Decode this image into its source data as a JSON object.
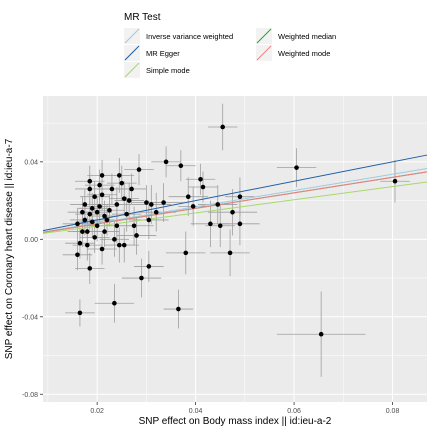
{
  "chart_data": {
    "type": "scatter",
    "xlabel": "SNP effect on Body mass index || id:ieu-a-2",
    "ylabel": "SNP effect on Coronary heart disease || id:ieu-a-7",
    "xlim": [
      0.009,
      0.087
    ],
    "ylim": [
      -0.084,
      0.074
    ],
    "x_ticks": [
      0.02,
      0.04,
      0.06,
      0.08
    ],
    "x_tick_labels": [
      "0.02",
      "0.04",
      "0.06",
      "0.08"
    ],
    "y_ticks": [
      -0.08,
      -0.04,
      0.0,
      0.04
    ],
    "y_tick_labels": [
      "-0.08",
      "-0.04",
      "0.00",
      "0.04"
    ],
    "grid": true,
    "legend": {
      "title": "MR Test",
      "placement": "top",
      "entries": [
        {
          "label": "Inverse variance weighted",
          "color": "#9ecae1"
        },
        {
          "label": "Weighted median",
          "color": "#2ca02c"
        },
        {
          "label": "MR Egger",
          "color": "#1f5fa8"
        },
        {
          "label": "Weighted mode",
          "color": "#f08080"
        },
        {
          "label": "Simple mode",
          "color": "#a6d96a"
        }
      ]
    },
    "lines": [
      {
        "name": "Inverse variance weighted",
        "slope": 0.42,
        "color": "#9ecae1"
      },
      {
        "name": "MR Egger",
        "slope": 0.5,
        "color": "#1f5fa8"
      },
      {
        "name": "Weighted median",
        "slope": 0.4,
        "color": "#2ca02c"
      },
      {
        "name": "Weighted mode",
        "slope": 0.4,
        "color": "#f08080"
      },
      {
        "name": "Simple mode",
        "slope": 0.34,
        "color": "#a6d96a"
      }
    ],
    "points": [
      {
        "x": 0.0455,
        "y": 0.058,
        "xerr": 0.003,
        "yerr": 0.012
      },
      {
        "x": 0.0605,
        "y": 0.037,
        "xerr": 0.004,
        "yerr": 0.01
      },
      {
        "x": 0.0805,
        "y": 0.03,
        "xerr": 0.003,
        "yerr": 0.011
      },
      {
        "x": 0.0655,
        "y": -0.049,
        "xerr": 0.009,
        "yerr": 0.022
      },
      {
        "x": 0.0365,
        "y": -0.036,
        "xerr": 0.003,
        "yerr": 0.01
      },
      {
        "x": 0.0165,
        "y": -0.038,
        "xerr": 0.003,
        "yerr": 0.007
      },
      {
        "x": 0.0235,
        "y": -0.033,
        "xerr": 0.004,
        "yerr": 0.01
      },
      {
        "x": 0.029,
        "y": -0.02,
        "xerr": 0.004,
        "yerr": 0.01
      },
      {
        "x": 0.0305,
        "y": -0.014,
        "xerr": 0.003,
        "yerr": 0.008
      },
      {
        "x": 0.038,
        "y": -0.007,
        "xerr": 0.004,
        "yerr": 0.011
      },
      {
        "x": 0.047,
        "y": -0.007,
        "xerr": 0.004,
        "yerr": 0.012
      },
      {
        "x": 0.0385,
        "y": 0.022,
        "xerr": 0.004,
        "yerr": 0.01
      },
      {
        "x": 0.0395,
        "y": 0.017,
        "xerr": 0.003,
        "yerr": 0.01
      },
      {
        "x": 0.043,
        "y": 0.008,
        "xerr": 0.004,
        "yerr": 0.012
      },
      {
        "x": 0.0445,
        "y": 0.018,
        "xerr": 0.004,
        "yerr": 0.01
      },
      {
        "x": 0.045,
        "y": 0.007,
        "xerr": 0.003,
        "yerr": 0.011
      },
      {
        "x": 0.0475,
        "y": 0.014,
        "xerr": 0.005,
        "yerr": 0.012
      },
      {
        "x": 0.049,
        "y": 0.008,
        "xerr": 0.004,
        "yerr": 0.011
      },
      {
        "x": 0.049,
        "y": 0.022,
        "xerr": 0.003,
        "yerr": 0.01
      },
      {
        "x": 0.041,
        "y": 0.031,
        "xerr": 0.003,
        "yerr": 0.008
      },
      {
        "x": 0.0415,
        "y": 0.027,
        "xerr": 0.003,
        "yerr": 0.008
      },
      {
        "x": 0.037,
        "y": 0.038,
        "xerr": 0.003,
        "yerr": 0.008
      },
      {
        "x": 0.034,
        "y": 0.04,
        "xerr": 0.003,
        "yerr": 0.008
      },
      {
        "x": 0.0335,
        "y": 0.019,
        "xerr": 0.004,
        "yerr": 0.01
      },
      {
        "x": 0.032,
        "y": 0.014,
        "xerr": 0.004,
        "yerr": 0.01
      },
      {
        "x": 0.031,
        "y": 0.018,
        "xerr": 0.004,
        "yerr": 0.01
      },
      {
        "x": 0.03,
        "y": 0.019,
        "xerr": 0.003,
        "yerr": 0.009
      },
      {
        "x": 0.0305,
        "y": 0.01,
        "xerr": 0.004,
        "yerr": 0.01
      },
      {
        "x": 0.0285,
        "y": 0.036,
        "xerr": 0.003,
        "yerr": 0.008
      },
      {
        "x": 0.027,
        "y": 0.026,
        "xerr": 0.003,
        "yerr": 0.008
      },
      {
        "x": 0.0275,
        "y": 0.007,
        "xerr": 0.004,
        "yerr": 0.01
      },
      {
        "x": 0.026,
        "y": 0.013,
        "xerr": 0.003,
        "yerr": 0.009
      },
      {
        "x": 0.0255,
        "y": 0.021,
        "xerr": 0.003,
        "yerr": 0.009
      },
      {
        "x": 0.025,
        "y": 0.029,
        "xerr": 0.003,
        "yerr": 0.009
      },
      {
        "x": 0.0245,
        "y": 0.033,
        "xerr": 0.003,
        "yerr": 0.009
      },
      {
        "x": 0.024,
        "y": 0.018,
        "xerr": 0.003,
        "yerr": 0.009
      },
      {
        "x": 0.024,
        "y": 0.007,
        "xerr": 0.003,
        "yerr": 0.009
      },
      {
        "x": 0.0235,
        "y": 0.0,
        "xerr": 0.003,
        "yerr": 0.009
      },
      {
        "x": 0.0245,
        "y": -0.003,
        "xerr": 0.003,
        "yerr": 0.009
      },
      {
        "x": 0.0255,
        "y": -0.003,
        "xerr": 0.003,
        "yerr": 0.009
      },
      {
        "x": 0.023,
        "y": 0.026,
        "xerr": 0.003,
        "yerr": 0.008
      },
      {
        "x": 0.0225,
        "y": 0.015,
        "xerr": 0.003,
        "yerr": 0.008
      },
      {
        "x": 0.0215,
        "y": 0.012,
        "xerr": 0.003,
        "yerr": 0.008
      },
      {
        "x": 0.0215,
        "y": 0.004,
        "xerr": 0.003,
        "yerr": 0.008
      },
      {
        "x": 0.021,
        "y": 0.033,
        "xerr": 0.003,
        "yerr": 0.008
      },
      {
        "x": 0.021,
        "y": 0.023,
        "xerr": 0.003,
        "yerr": 0.008
      },
      {
        "x": 0.0205,
        "y": 0.028,
        "xerr": 0.003,
        "yerr": 0.008
      },
      {
        "x": 0.0205,
        "y": 0.017,
        "xerr": 0.003,
        "yerr": 0.008
      },
      {
        "x": 0.02,
        "y": 0.014,
        "xerr": 0.003,
        "yerr": 0.008
      },
      {
        "x": 0.02,
        "y": 0.007,
        "xerr": 0.003,
        "yerr": 0.008
      },
      {
        "x": 0.0195,
        "y": 0.022,
        "xerr": 0.003,
        "yerr": 0.008
      },
      {
        "x": 0.0195,
        "y": 0.001,
        "xerr": 0.003,
        "yerr": 0.008
      },
      {
        "x": 0.019,
        "y": 0.016,
        "xerr": 0.003,
        "yerr": 0.008
      },
      {
        "x": 0.019,
        "y": 0.009,
        "xerr": 0.003,
        "yerr": 0.008
      },
      {
        "x": 0.0185,
        "y": 0.03,
        "xerr": 0.003,
        "yerr": 0.008
      },
      {
        "x": 0.0185,
        "y": 0.026,
        "xerr": 0.003,
        "yerr": 0.008
      },
      {
        "x": 0.0185,
        "y": 0.013,
        "xerr": 0.003,
        "yerr": 0.008
      },
      {
        "x": 0.018,
        "y": 0.004,
        "xerr": 0.003,
        "yerr": 0.008
      },
      {
        "x": 0.018,
        "y": -0.003,
        "xerr": 0.003,
        "yerr": 0.008
      },
      {
        "x": 0.0175,
        "y": 0.018,
        "xerr": 0.003,
        "yerr": 0.008
      },
      {
        "x": 0.0175,
        "y": 0.01,
        "xerr": 0.003,
        "yerr": 0.008
      },
      {
        "x": 0.017,
        "y": 0.014,
        "xerr": 0.003,
        "yerr": 0.008
      },
      {
        "x": 0.017,
        "y": 0.004,
        "xerr": 0.003,
        "yerr": 0.008
      },
      {
        "x": 0.0165,
        "y": -0.002,
        "xerr": 0.003,
        "yerr": 0.008
      },
      {
        "x": 0.016,
        "y": 0.008,
        "xerr": 0.003,
        "yerr": 0.008
      },
      {
        "x": 0.016,
        "y": -0.008,
        "xerr": 0.003,
        "yerr": 0.008
      },
      {
        "x": 0.0185,
        "y": -0.015,
        "xerr": 0.003,
        "yerr": 0.008
      },
      {
        "x": 0.021,
        "y": -0.005,
        "xerr": 0.003,
        "yerr": 0.008
      },
      {
        "x": 0.022,
        "y": 0.01,
        "xerr": 0.003,
        "yerr": 0.008
      },
      {
        "x": 0.028,
        "y": 0.002,
        "xerr": 0.004,
        "yerr": 0.01
      },
      {
        "x": 0.0265,
        "y": 0.02,
        "xerr": 0.003,
        "yerr": 0.009
      }
    ]
  }
}
